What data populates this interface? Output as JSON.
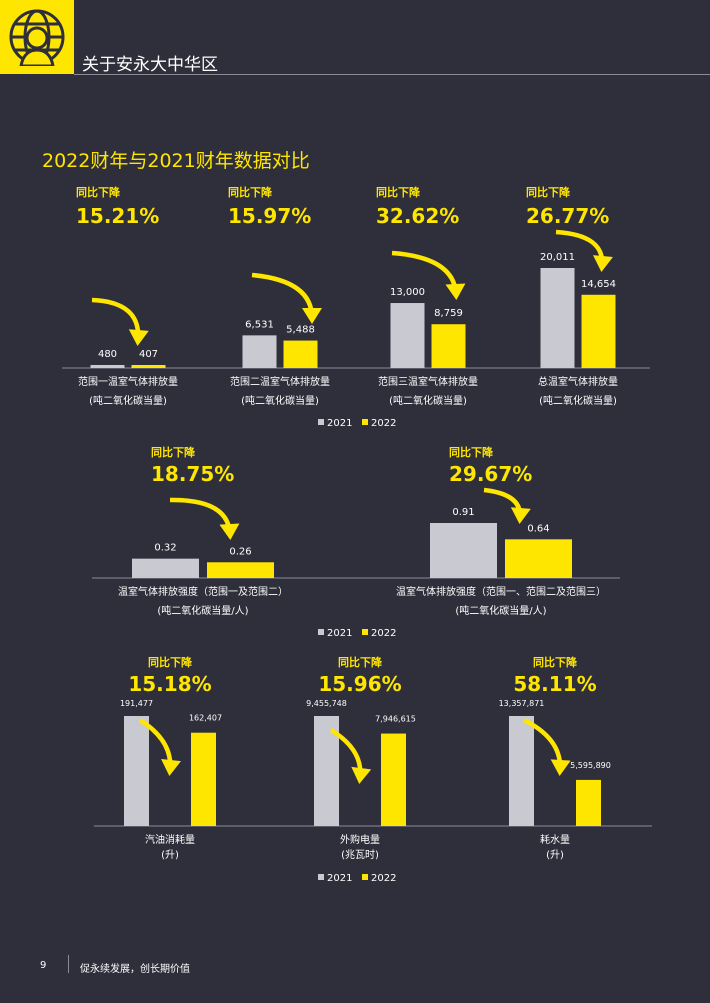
{
  "header": {
    "title": "关于安永大中华区",
    "logo_icon": "globe-person-icon"
  },
  "page_title": "2022财年与2021财年数据对比",
  "colors": {
    "yellow": "#ffe600",
    "gray": "#c9c9d1",
    "background": "#2e2f3b"
  },
  "legend": {
    "labels": [
      "2021",
      "2022"
    ]
  },
  "chart_data": [
    {
      "type": "bar",
      "series_names": [
        "2021",
        "2022"
      ],
      "groups": [
        {
          "change_label": "同比下降",
          "change_pct": "15.21%",
          "label_line1": "范围一温室气体排放量",
          "label_line2": "(吨二氧化碳当量)",
          "values": [
            480,
            407
          ],
          "value_labels": [
            "480",
            "407"
          ]
        },
        {
          "change_label": "同比下降",
          "change_pct": "15.97%",
          "label_line1": "范围二温室气体排放量",
          "label_line2": "(吨二氧化碳当量)",
          "values": [
            6531,
            5488
          ],
          "value_labels": [
            "6,531",
            "5,488"
          ]
        },
        {
          "change_label": "同比下降",
          "change_pct": "32.62%",
          "label_line1": "范围三温室气体排放量",
          "label_line2": "(吨二氧化碳当量)",
          "values": [
            13000,
            8759
          ],
          "value_labels": [
            "13,000",
            "8,759"
          ]
        },
        {
          "change_label": "同比下降",
          "change_pct": "26.77%",
          "label_line1": "总温室气体排放量",
          "label_line2": "(吨二氧化碳当量)",
          "values": [
            20011,
            14654
          ],
          "value_labels": [
            "20,011",
            "14,654"
          ]
        }
      ]
    },
    {
      "type": "bar",
      "series_names": [
        "2021",
        "2022"
      ],
      "groups": [
        {
          "change_label": "同比下降",
          "change_pct": "18.75%",
          "label_line1": "温室气体排放强度（范围一及范围二）",
          "label_line2": "(吨二氧化碳当量/人)",
          "values": [
            0.32,
            0.26
          ],
          "value_labels": [
            "0.32",
            "0.26"
          ]
        },
        {
          "change_label": "同比下降",
          "change_pct": "29.67%",
          "label_line1": "温室气体排放强度（范围一、范围二及范围三）",
          "label_line2": "(吨二氧化碳当量/人)",
          "values": [
            0.91,
            0.64
          ],
          "value_labels": [
            "0.91",
            "0.64"
          ]
        }
      ]
    },
    {
      "type": "bar",
      "series_names": [
        "2021",
        "2022"
      ],
      "groups": [
        {
          "change_label": "同比下降",
          "change_pct": "15.18%",
          "label_line1": "汽油消耗量",
          "label_line2": "(升)",
          "values": [
            191477,
            162407
          ],
          "value_labels": [
            "191,477",
            "162,407"
          ]
        },
        {
          "change_label": "同比下降",
          "change_pct": "15.96%",
          "label_line1": "外购电量",
          "label_line2": "(兆瓦时)",
          "values": [
            9455748,
            7946615
          ],
          "value_labels": [
            "9,455,748",
            "7,946,615"
          ]
        },
        {
          "change_label": "同比下降",
          "change_pct": "58.11%",
          "label_line1": "耗水量",
          "label_line2": "(升)",
          "values": [
            13357871,
            5595890
          ],
          "value_labels": [
            "13,357,871",
            "5,595,890"
          ]
        }
      ]
    }
  ],
  "footer": {
    "page_number": "9",
    "text": "促永续发展，创长期价值"
  }
}
